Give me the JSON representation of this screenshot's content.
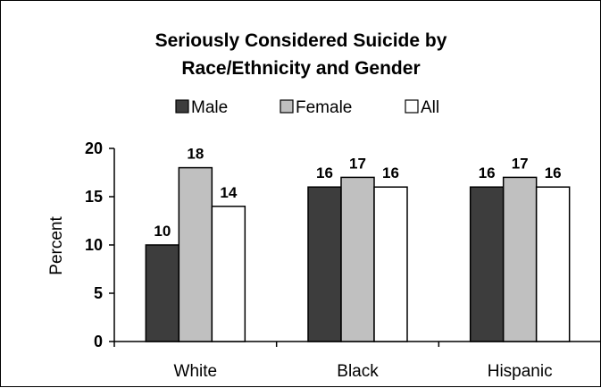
{
  "chart_data": {
    "type": "bar",
    "title_lines": [
      "Seriously Considered Suicide by",
      "Race/Ethnicity and Gender"
    ],
    "xlabel": "",
    "ylabel": "Percent",
    "categories": [
      "White",
      "Black",
      "Hispanic"
    ],
    "ylim": [
      0,
      20
    ],
    "yticks": [
      0,
      5,
      10,
      15,
      20
    ],
    "grid": false,
    "legend_position": "top",
    "series": [
      {
        "name": "Male",
        "values": [
          10,
          16,
          16
        ],
        "color": "#3d3d3d"
      },
      {
        "name": "Female",
        "values": [
          18,
          17,
          17
        ],
        "color": "#c0c0c0"
      },
      {
        "name": "All",
        "values": [
          14,
          16,
          16
        ],
        "color": "#ffffff"
      }
    ]
  }
}
